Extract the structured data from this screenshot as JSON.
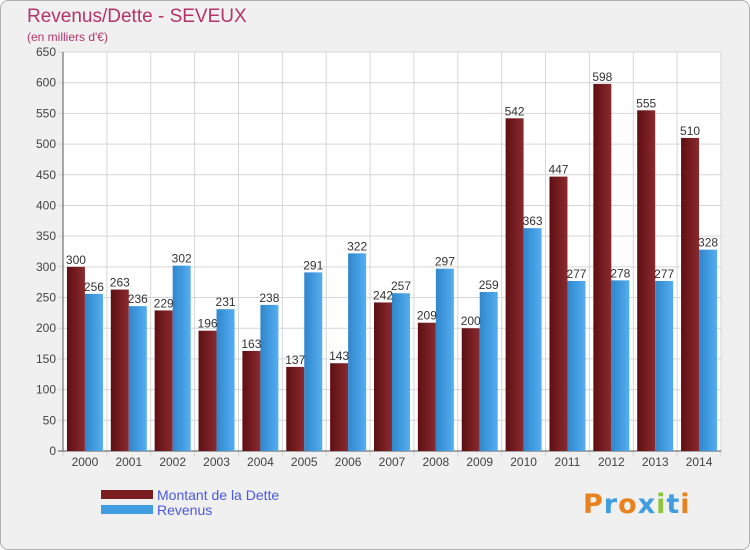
{
  "chart_data": {
    "type": "bar",
    "title": "Revenus/Dette - SEVEUX",
    "subtitle": "(en milliers d'€)",
    "categories": [
      "2000",
      "2001",
      "2002",
      "2003",
      "2004",
      "2005",
      "2006",
      "2007",
      "2008",
      "2009",
      "2010",
      "2011",
      "2012",
      "2013",
      "2014"
    ],
    "series": [
      {
        "name": "Montant de la Dette",
        "color": "#7a1e22",
        "values": [
          300,
          263,
          229,
          196,
          163,
          137,
          143,
          242,
          209,
          200,
          542,
          447,
          598,
          555,
          510
        ]
      },
      {
        "name": "Revenus",
        "color": "#3f9de0",
        "values": [
          256,
          236,
          302,
          231,
          238,
          291,
          322,
          257,
          297,
          259,
          363,
          277,
          278,
          277,
          328
        ]
      }
    ],
    "ylim": [
      0,
      650
    ],
    "yticks": [
      0,
      50,
      100,
      150,
      200,
      250,
      300,
      350,
      400,
      450,
      500,
      550,
      600,
      650
    ],
    "grid": true,
    "legend_position": "bottom-left"
  },
  "logo": {
    "letters": [
      "P",
      "r",
      "o",
      "x",
      "i",
      "t",
      "i"
    ],
    "colors": [
      "#e8821e",
      "#3f9de0",
      "#e8821e",
      "#3f9de0",
      "#8cc63f",
      "#3f9de0",
      "#e8821e"
    ]
  }
}
